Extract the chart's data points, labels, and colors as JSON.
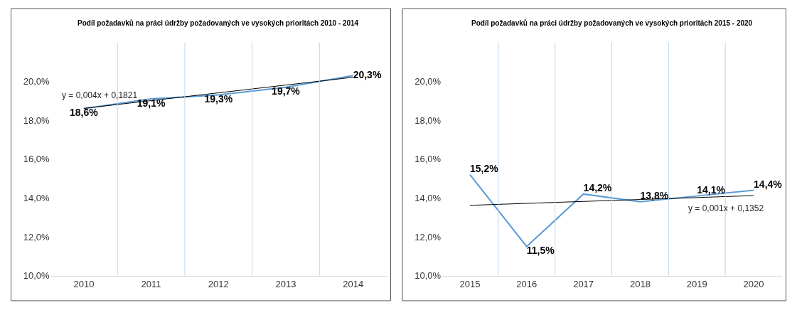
{
  "chart_data": [
    {
      "type": "line",
      "title": "Podíl požadavků na práci údržby požadovaných ve vysokých prioritách 2010 - 2014",
      "categories": [
        "2010",
        "2011",
        "2012",
        "2013",
        "2014"
      ],
      "series": [
        {
          "color": "#5b9bd5",
          "values": [
            18.6,
            19.1,
            19.3,
            19.7,
            20.3
          ],
          "value_labels": [
            "18,6%",
            "19,1%",
            "19,3%",
            "19,7%",
            "20,3%"
          ]
        },
        {
          "type": "line",
          "color": "#000000",
          "values": [
            18.61,
            19.01,
            19.41,
            19.81,
            20.21
          ]
        }
      ],
      "ylim": [
        10,
        22
      ],
      "yticks": [
        {
          "value": 10,
          "label": "10,0%"
        },
        {
          "value": 12,
          "label": "12,0%"
        },
        {
          "value": 14,
          "label": "14,0%"
        },
        {
          "value": 16,
          "label": "16,0%"
        },
        {
          "value": 18,
          "label": "18,0%"
        },
        {
          "value": 20,
          "label": "20,0%"
        }
      ],
      "annotations": [
        "y = 0,004x + 0,1821"
      ],
      "grid": "x",
      "marker": "none",
      "line_style": "solid"
    },
    {
      "type": "line",
      "title": "Podíl požadavků na práci údržby požadovaných ve vysokých prioritách 2015 - 2020",
      "categories": [
        "2015",
        "2016",
        "2017",
        "2018",
        "2019",
        "2020"
      ],
      "series": [
        {
          "color": "#5b9bd5",
          "values": [
            15.2,
            11.5,
            14.2,
            13.8,
            14.1,
            14.4
          ],
          "value_labels": [
            "15,2%",
            "11,5%",
            "14,2%",
            "13,8%",
            "14,1%",
            "14,4%"
          ]
        },
        {
          "type": "line",
          "color": "#000000",
          "values": [
            13.62,
            13.72,
            13.82,
            13.92,
            14.02,
            14.12
          ]
        }
      ],
      "ylim": [
        10,
        22
      ],
      "yticks": [
        {
          "value": 10,
          "label": "10,0%"
        },
        {
          "value": 12,
          "label": "12,0%"
        },
        {
          "value": 14,
          "label": "14,0%"
        },
        {
          "value": 16,
          "label": "16,0%"
        },
        {
          "value": 18,
          "label": "18,0%"
        },
        {
          "value": 20,
          "label": "20,0%"
        }
      ],
      "annotations": [
        "y = 0,001x + 0,1352"
      ],
      "grid": "x",
      "marker": "none",
      "line_style": "solid"
    }
  ]
}
